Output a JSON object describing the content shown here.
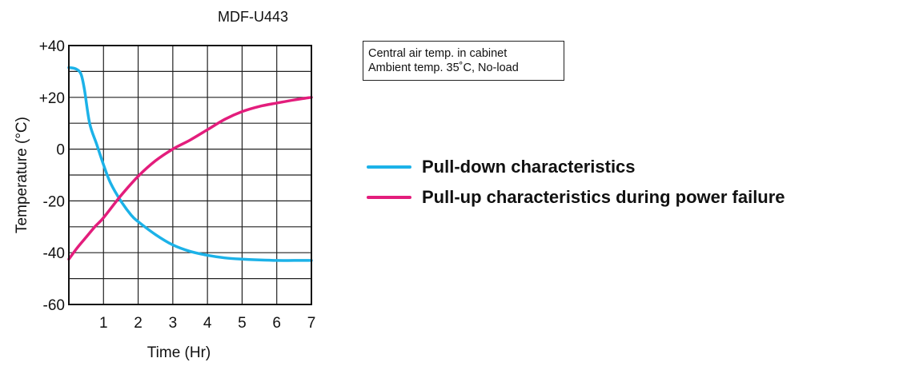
{
  "chart_data": {
    "type": "line",
    "title": "MDF-U443",
    "xlabel": "Time (Hr)",
    "ylabel": "Temperature (°C)",
    "xlim": [
      0,
      7
    ],
    "ylim": [
      -60,
      40
    ],
    "x_ticks": [
      "1",
      "2",
      "3",
      "4",
      "5",
      "6",
      "7"
    ],
    "y_ticks": [
      "+40",
      "+20",
      "0",
      "-20",
      "-40",
      "-60"
    ],
    "grid": true,
    "annotation": [
      "Central air temp. in cabinet",
      "Ambient temp. 35˚C, No-load"
    ],
    "legend_position": "right",
    "series": [
      {
        "name": "Pull-down characteristics",
        "color": "#1cb2e8",
        "x": [
          0,
          0.2,
          0.35,
          0.45,
          0.6,
          0.8,
          1.0,
          1.2,
          1.5,
          1.8,
          2.0,
          2.5,
          3.0,
          3.5,
          4.0,
          4.5,
          5.0,
          5.5,
          6.0,
          6.5,
          7.0
        ],
        "y": [
          31.5,
          31,
          29,
          23,
          10,
          2,
          -6,
          -13,
          -20,
          -25.5,
          -28,
          -33,
          -37,
          -39.5,
          -41,
          -42,
          -42.5,
          -42.8,
          -43,
          -43,
          -43
        ]
      },
      {
        "name": "Pull-up characteristics during power failure",
        "color": "#e31d7c",
        "x": [
          0,
          0.25,
          0.5,
          0.75,
          1.0,
          1.5,
          2.0,
          2.5,
          3.0,
          3.5,
          4.0,
          4.5,
          5.0,
          5.5,
          6.0,
          6.5,
          7.0
        ],
        "y": [
          -42.5,
          -38,
          -34,
          -30,
          -26.5,
          -18,
          -10.5,
          -4.5,
          0,
          3.5,
          7.5,
          11.5,
          14.5,
          16.5,
          17.8,
          19,
          20
        ]
      }
    ]
  }
}
